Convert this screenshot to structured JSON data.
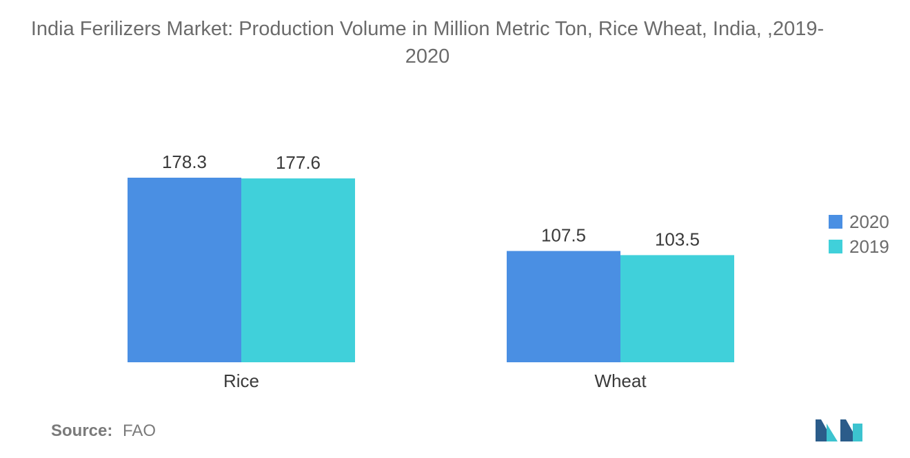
{
  "chart_data": {
    "type": "bar",
    "title": "India Ferilizers Market: Production Volume in Million Metric Ton, Rice Wheat, India, ,2019-2020",
    "categories": [
      "Rice",
      "Wheat"
    ],
    "series": [
      {
        "name": "2020",
        "values": [
          178.3,
          107.5
        ],
        "value_labels": [
          "178.3",
          "107.5"
        ],
        "color": "#4a8fe3"
      },
      {
        "name": "2019",
        "values": [
          177.6,
          103.5
        ],
        "value_labels": [
          "177.6",
          "103.5"
        ],
        "color": "#40d0da"
      }
    ],
    "ylim": [
      0,
      178.3
    ],
    "grid": false,
    "legend_position": "right"
  },
  "source": {
    "label": "Source:",
    "value": "FAO"
  },
  "logo_colors": [
    "#2b5c8a",
    "#3cc3cf"
  ]
}
